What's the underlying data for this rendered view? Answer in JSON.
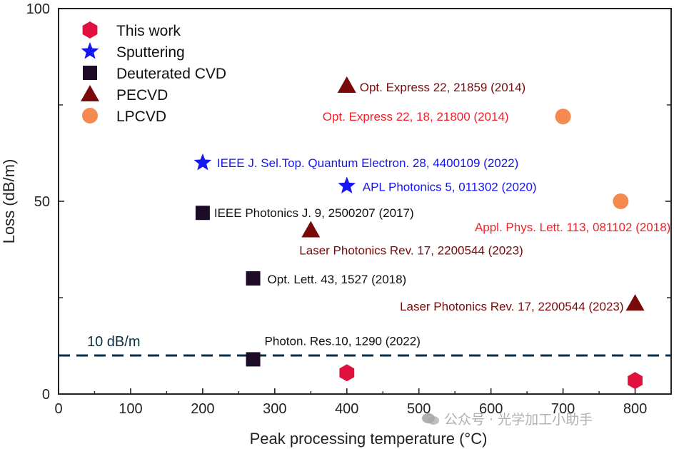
{
  "chart_data": {
    "type": "scatter",
    "xlabel": "Peak processing temperature (°C)",
    "ylabel": "Loss (dB/m)",
    "xlim": [
      0,
      850
    ],
    "ylim": [
      0,
      100
    ],
    "x_ticks": [
      0,
      100,
      200,
      300,
      400,
      500,
      600,
      700,
      800
    ],
    "y_ticks": [
      0,
      50,
      100
    ],
    "y_minor_ticks": [
      25,
      75
    ],
    "reference_line": {
      "value": 10,
      "label": "10 dB/m",
      "color": "#0b2f45"
    },
    "legend_position": "top-left",
    "series": [
      {
        "name": "This work",
        "marker": "hexagon",
        "color": "#e0103f",
        "points": [
          {
            "x": 400,
            "y": 5.5,
            "label": ""
          },
          {
            "x": 800,
            "y": 3.5,
            "label": ""
          }
        ]
      },
      {
        "name": "Sputtering",
        "marker": "star",
        "color": "#1616ee",
        "points": [
          {
            "x": 200,
            "y": 60,
            "label": "IEEE J. Sel.Top. Quantum Electron. 28, 4400109 (2022)"
          },
          {
            "x": 400,
            "y": 54,
            "label": "APL Photonics 5, 011302 (2020)"
          }
        ]
      },
      {
        "name": "Deuterated CVD",
        "marker": "square",
        "color": "#1e0b28",
        "points": [
          {
            "x": 200,
            "y": 47,
            "label": "IEEE Photonics J. 9, 2500207 (2017)"
          },
          {
            "x": 270,
            "y": 30,
            "label": "Opt. Lett. 43, 1527 (2018)"
          },
          {
            "x": 270,
            "y": 9,
            "label": "Photon. Res.10, 1290 (2022)"
          }
        ]
      },
      {
        "name": "PECVD",
        "marker": "triangle",
        "color": "#7a0a0a",
        "points": [
          {
            "x": 400,
            "y": 80,
            "label": "Opt. Express 22, 21859 (2014)"
          },
          {
            "x": 350,
            "y": 42.5,
            "label": "Laser Photonics Rev. 17, 2200544 (2023)"
          },
          {
            "x": 800,
            "y": 23.5,
            "label": "Laser Photonics Rev. 17, 2200544 (2023)"
          }
        ]
      },
      {
        "name": "LPCVD",
        "marker": "circle",
        "color": "#f58a50",
        "points": [
          {
            "x": 700,
            "y": 72,
            "label": "Opt. Express 22, 18, 21800 (2014)"
          },
          {
            "x": 780,
            "y": 50,
            "label": "Appl. Phys. Lett. 113, 081102 (2018)"
          }
        ]
      }
    ],
    "annotation_colors": {
      "Sputtering": "#1616ee",
      "Deuterated CVD": "#111111",
      "PECVD": "#7a0a0a",
      "LPCVD": "#f21f2a"
    }
  },
  "watermark": {
    "text": "公众号 · 光学加工小助手",
    "icon": "wechat-icon"
  }
}
